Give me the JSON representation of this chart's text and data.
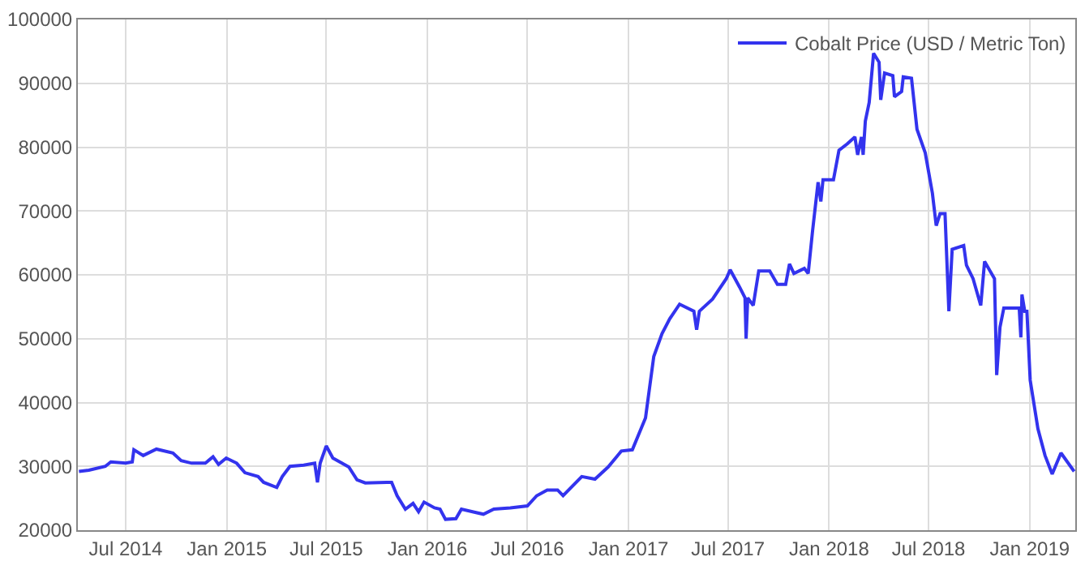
{
  "chart_data": {
    "type": "line",
    "legend": "top right",
    "grid": true,
    "marker": "none",
    "line_style": "solid",
    "xlim": [
      "2014-04-05",
      "2019-03-25"
    ],
    "xticks": [
      {
        "value": "2014-07-01",
        "label": "Jul 2014"
      },
      {
        "value": "2015-01-01",
        "label": "Jan 2015"
      },
      {
        "value": "2015-07-01",
        "label": "Jul 2015"
      },
      {
        "value": "2016-01-01",
        "label": "Jan 2016"
      },
      {
        "value": "2016-07-01",
        "label": "Jul 2016"
      },
      {
        "value": "2017-01-01",
        "label": "Jan 2017"
      },
      {
        "value": "2017-07-01",
        "label": "Jul 2017"
      },
      {
        "value": "2018-01-01",
        "label": "Jan 2018"
      },
      {
        "value": "2018-07-01",
        "label": "Jul 2018"
      },
      {
        "value": "2019-01-01",
        "label": "Jan 2019"
      }
    ],
    "ylim": [
      20000,
      100000
    ],
    "yticks": [
      20000,
      30000,
      40000,
      50000,
      60000,
      70000,
      80000,
      90000,
      100000
    ],
    "series": [
      {
        "name": "Cobalt Price (USD / Metric Ton)",
        "color": "#3333ee",
        "x": [
          "2014-04-07",
          "2014-04-25",
          "2014-05-25",
          "2014-06-04",
          "2014-07-01",
          "2014-07-13",
          "2014-07-16",
          "2014-08-02",
          "2014-08-26",
          "2014-09-25",
          "2014-10-10",
          "2014-10-29",
          "2014-11-23",
          "2014-12-07",
          "2014-12-17",
          "2014-12-31",
          "2015-01-19",
          "2015-02-03",
          "2015-02-27",
          "2015-03-09",
          "2015-04-02",
          "2015-04-12",
          "2015-04-26",
          "2015-05-21",
          "2015-06-10",
          "2015-06-15",
          "2015-06-20",
          "2015-07-01",
          "2015-07-13",
          "2015-08-11",
          "2015-08-26",
          "2015-09-10",
          "2015-10-19",
          "2015-10-28",
          "2015-11-07",
          "2015-11-22",
          "2015-12-06",
          "2015-12-16",
          "2015-12-26",
          "2016-01-14",
          "2016-01-24",
          "2016-02-03",
          "2016-02-22",
          "2016-03-03",
          "2016-03-28",
          "2016-04-12",
          "2016-05-01",
          "2016-05-31",
          "2016-07-01",
          "2016-07-18",
          "2016-08-06",
          "2016-08-25",
          "2016-09-04",
          "2016-10-08",
          "2016-11-01",
          "2016-11-25",
          "2016-12-19",
          "2017-01-08",
          "2017-02-01",
          "2017-02-16",
          "2017-03-03",
          "2017-03-17",
          "2017-04-04",
          "2017-04-30",
          "2017-05-05",
          "2017-05-10",
          "2017-06-03",
          "2017-06-28",
          "2017-07-05",
          "2017-07-22",
          "2017-08-01",
          "2017-08-03",
          "2017-08-06",
          "2017-08-16",
          "2017-08-26",
          "2017-09-15",
          "2017-09-29",
          "2017-10-14",
          "2017-10-21",
          "2017-10-29",
          "2017-11-17",
          "2017-11-24",
          "2017-12-02",
          "2017-12-12",
          "2017-12-17",
          "2017-12-21",
          "2018-01-09",
          "2018-01-19",
          "2018-02-03",
          "2018-02-17",
          "2018-02-22",
          "2018-03-01",
          "2018-03-04",
          "2018-03-08",
          "2018-03-15",
          "2018-03-23",
          "2018-04-02",
          "2018-04-05",
          "2018-04-12",
          "2018-04-27",
          "2018-04-30",
          "2018-05-13",
          "2018-05-16",
          "2018-05-31",
          "2018-06-10",
          "2018-06-25",
          "2018-07-08",
          "2018-07-15",
          "2018-07-22",
          "2018-07-31",
          "2018-08-07",
          "2018-08-13",
          "2018-09-03",
          "2018-09-08",
          "2018-09-20",
          "2018-10-04",
          "2018-10-11",
          "2018-10-29",
          "2018-11-02",
          "2018-11-08",
          "2018-11-15",
          "2018-12-13",
          "2018-12-16",
          "2018-12-18",
          "2018-12-23",
          "2018-12-27",
          "2019-01-02",
          "2019-01-16",
          "2019-01-29",
          "2019-02-11",
          "2019-02-27",
          "2019-03-23"
        ],
        "values": [
          29200,
          29400,
          30000,
          30700,
          30500,
          30700,
          32600,
          31700,
          32700,
          32100,
          30900,
          30500,
          30500,
          31500,
          30300,
          31300,
          30500,
          29000,
          28400,
          27500,
          26700,
          28400,
          30000,
          30200,
          30500,
          27500,
          30500,
          33200,
          31300,
          29900,
          27900,
          27400,
          27500,
          27500,
          25400,
          23300,
          24200,
          22900,
          24400,
          23500,
          23300,
          21700,
          21800,
          23300,
          22800,
          22500,
          23300,
          23500,
          23800,
          25400,
          26300,
          26300,
          25400,
          28400,
          28000,
          29900,
          32400,
          32600,
          37600,
          47200,
          50800,
          53100,
          55400,
          54300,
          51400,
          54300,
          56200,
          59400,
          60800,
          58100,
          56400,
          50000,
          56400,
          55200,
          60600,
          60600,
          58500,
          58500,
          61700,
          60200,
          61000,
          60200,
          66900,
          74500,
          71500,
          74900,
          74900,
          79500,
          80500,
          81600,
          78800,
          81600,
          78800,
          84100,
          87000,
          94700,
          93300,
          87400,
          91600,
          91200,
          87900,
          88700,
          91000,
          90800,
          82800,
          79100,
          72800,
          67700,
          69600,
          69600,
          54300,
          64000,
          64600,
          61500,
          59400,
          55200,
          62100,
          59400,
          44300,
          51800,
          54800,
          54800,
          50200,
          56900,
          54300,
          54300,
          43500,
          35900,
          31700,
          28800,
          32100,
          29200
        ]
      }
    ]
  }
}
